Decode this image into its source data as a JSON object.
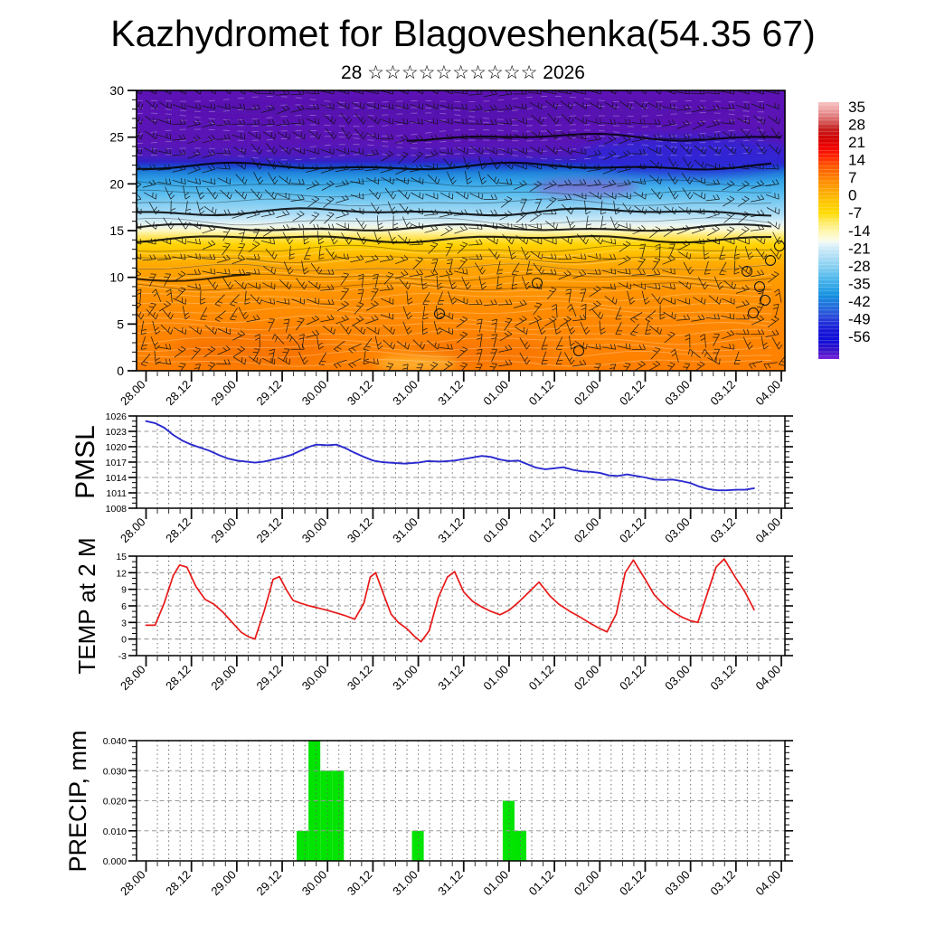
{
  "title": "Kazhydromet for Blagoveshenka(54.35 67)",
  "subtitle": "28 ☆☆☆☆☆☆☆☆☆☆ 2026",
  "panels": {
    "pmsl_label": "PMSL",
    "temp_label": "TEMP at 2 M",
    "precip_label": "PRECIP, mm"
  },
  "time_axis": {
    "tick_labels": [
      "28.00",
      "28.12",
      "29.00",
      "29.12",
      "30.00",
      "30.12",
      "31.00",
      "31.12",
      "01.00",
      "01.12",
      "02.00",
      "02.12",
      "03.00",
      "03.12",
      "04.00"
    ],
    "minor_step_hours": 3,
    "major_step_hours": 12,
    "span_days": 7
  },
  "chart_data": [
    {
      "id": "cross_section",
      "type": "heatmap",
      "description": "Upper-air temperature cross-section with wind barbs",
      "ylim": [
        0,
        30
      ],
      "ytick_labels": [
        "0",
        "5",
        "10",
        "15",
        "20",
        "25",
        "30"
      ],
      "color_bands_by_height": [
        {
          "h": 30,
          "color": "#5c12b4"
        },
        {
          "h": 24.5,
          "color": "#5a14b6"
        },
        {
          "h": 23,
          "color": "#4c19bc"
        },
        {
          "h": 22.4,
          "color": "#3222c6"
        },
        {
          "h": 21.9,
          "color": "#1947d0"
        },
        {
          "h": 21.2,
          "color": "#1f83da"
        },
        {
          "h": 20.2,
          "color": "#36a6e8"
        },
        {
          "h": 19,
          "color": "#58bcee"
        },
        {
          "h": 18,
          "color": "#7fccf2"
        },
        {
          "h": 17,
          "color": "#a2d8f4"
        },
        {
          "h": 16.2,
          "color": "#c8e9f8"
        },
        {
          "h": 15.6,
          "color": "#e9f4f0"
        },
        {
          "h": 15.05,
          "color": "#fbf8cc"
        },
        {
          "h": 14.4,
          "color": "#ffe76a"
        },
        {
          "h": 13.5,
          "color": "#ffd300"
        },
        {
          "h": 12.4,
          "color": "#ffbb00"
        },
        {
          "h": 11,
          "color": "#ffa500"
        },
        {
          "h": 8.5,
          "color": "#ff9300"
        },
        {
          "h": 5,
          "color": "#ff8700"
        },
        {
          "h": 0,
          "color": "#ff7f00"
        }
      ],
      "colorbar": {
        "tick_labels": [
          "35",
          "28",
          "21",
          "14",
          "7",
          "0",
          "-7",
          "-14",
          "-21",
          "-28",
          "-35",
          "-42",
          "-49",
          "-56"
        ],
        "gradient_by_value": [
          {
            "v": 38,
            "color": "#f7c0c0"
          },
          {
            "v": 35,
            "color": "#eda0a0"
          },
          {
            "v": 31,
            "color": "#d86060"
          },
          {
            "v": 28,
            "color": "#c62020"
          },
          {
            "v": 24,
            "color": "#d40000"
          },
          {
            "v": 21,
            "color": "#f00000"
          },
          {
            "v": 17,
            "color": "#ff2a00"
          },
          {
            "v": 14,
            "color": "#ff5500"
          },
          {
            "v": 10,
            "color": "#ff7b00"
          },
          {
            "v": 7,
            "color": "#ff9400"
          },
          {
            "v": 3,
            "color": "#ffb200"
          },
          {
            "v": 0,
            "color": "#ffc800"
          },
          {
            "v": -4,
            "color": "#ffdb00"
          },
          {
            "v": -7,
            "color": "#ffe95e"
          },
          {
            "v": -11,
            "color": "#fef7b0"
          },
          {
            "v": -14,
            "color": "#fbfce3"
          },
          {
            "v": -15,
            "color": "#eff8f6"
          },
          {
            "v": -17,
            "color": "#d3ecf9"
          },
          {
            "v": -21,
            "color": "#a8dcf5"
          },
          {
            "v": -25,
            "color": "#7ccbf0"
          },
          {
            "v": -28,
            "color": "#55baec"
          },
          {
            "v": -32,
            "color": "#2fa5e6"
          },
          {
            "v": -35,
            "color": "#1490e0"
          },
          {
            "v": -38,
            "color": "#1f77dd"
          },
          {
            "v": -42,
            "color": "#2a55da"
          },
          {
            "v": -45,
            "color": "#2333d8"
          },
          {
            "v": -49,
            "color": "#1512d8"
          },
          {
            "v": -52,
            "color": "#0e0ed8"
          },
          {
            "v": -56,
            "color": "#3c14c8"
          },
          {
            "v": -59,
            "color": "#7a22dc"
          }
        ]
      }
    },
    {
      "id": "pmsl",
      "type": "line",
      "label": "PMSL",
      "line_color": "#2a2ad0",
      "ylim": [
        1008,
        1026
      ],
      "ytick_labels": [
        "1008",
        "1011",
        "1014",
        "1017",
        "1020",
        "1023",
        "1026"
      ],
      "points": [
        [
          0,
          1025.0
        ],
        [
          0.1,
          1024.6
        ],
        [
          0.2,
          1023.7
        ],
        [
          0.3,
          1022.3
        ],
        [
          0.4,
          1021.2
        ],
        [
          0.5,
          1020.4
        ],
        [
          0.6,
          1019.8
        ],
        [
          0.7,
          1019.2
        ],
        [
          0.8,
          1018.4
        ],
        [
          0.9,
          1017.7
        ],
        [
          1.0,
          1017.3
        ],
        [
          1.1,
          1017.1
        ],
        [
          1.2,
          1016.9
        ],
        [
          1.3,
          1017.1
        ],
        [
          1.4,
          1017.5
        ],
        [
          1.5,
          1017.9
        ],
        [
          1.6,
          1018.4
        ],
        [
          1.7,
          1019.2
        ],
        [
          1.8,
          1020.0
        ],
        [
          1.875,
          1020.4
        ],
        [
          2.0,
          1020.3
        ],
        [
          2.1,
          1020.4
        ],
        [
          2.2,
          1019.7
        ],
        [
          2.3,
          1018.8
        ],
        [
          2.4,
          1018.0
        ],
        [
          2.5,
          1017.3
        ],
        [
          2.6,
          1017.0
        ],
        [
          2.75,
          1016.8
        ],
        [
          2.85,
          1016.7
        ],
        [
          3.0,
          1016.9
        ],
        [
          3.1,
          1017.2
        ],
        [
          3.25,
          1017.1
        ],
        [
          3.4,
          1017.3
        ],
        [
          3.5,
          1017.6
        ],
        [
          3.6,
          1017.9
        ],
        [
          3.7,
          1018.2
        ],
        [
          3.8,
          1018.0
        ],
        [
          3.9,
          1017.5
        ],
        [
          4.0,
          1017.2
        ],
        [
          4.1,
          1017.3
        ],
        [
          4.2,
          1016.6
        ],
        [
          4.3,
          1015.9
        ],
        [
          4.4,
          1015.6
        ],
        [
          4.5,
          1015.8
        ],
        [
          4.6,
          1016.0
        ],
        [
          4.7,
          1015.5
        ],
        [
          4.8,
          1015.2
        ],
        [
          4.9,
          1015.1
        ],
        [
          5.0,
          1014.9
        ],
        [
          5.1,
          1014.4
        ],
        [
          5.2,
          1014.3
        ],
        [
          5.3,
          1014.6
        ],
        [
          5.4,
          1014.3
        ],
        [
          5.5,
          1014.0
        ],
        [
          5.6,
          1013.6
        ],
        [
          5.7,
          1013.5
        ],
        [
          5.8,
          1013.6
        ],
        [
          5.9,
          1013.3
        ],
        [
          6.0,
          1012.9
        ],
        [
          6.1,
          1012.2
        ],
        [
          6.2,
          1011.7
        ],
        [
          6.3,
          1011.5
        ],
        [
          6.4,
          1011.5
        ],
        [
          6.5,
          1011.6
        ],
        [
          6.6,
          1011.6
        ],
        [
          6.7,
          1011.9
        ]
      ]
    },
    {
      "id": "temp",
      "type": "line",
      "label": "TEMP at 2 M",
      "line_color": "#e81818",
      "ylim": [
        -3,
        15
      ],
      "ytick_labels": [
        "-3",
        "0",
        "3",
        "6",
        "9",
        "12",
        "15"
      ],
      "points": [
        [
          0,
          2.5
        ],
        [
          0.1,
          2.5
        ],
        [
          0.2,
          6.5
        ],
        [
          0.3,
          11.5
        ],
        [
          0.37,
          13.4
        ],
        [
          0.45,
          13.0
        ],
        [
          0.55,
          9.5
        ],
        [
          0.65,
          7.2
        ],
        [
          0.75,
          6.3
        ],
        [
          0.85,
          4.8
        ],
        [
          0.95,
          3.0
        ],
        [
          1.05,
          1.2
        ],
        [
          1.13,
          0.4
        ],
        [
          1.2,
          0.0
        ],
        [
          1.3,
          5.0
        ],
        [
          1.4,
          10.8
        ],
        [
          1.47,
          11.3
        ],
        [
          1.55,
          8.8
        ],
        [
          1.62,
          7.0
        ],
        [
          1.7,
          6.5
        ],
        [
          1.8,
          6.0
        ],
        [
          1.9,
          5.6
        ],
        [
          2.0,
          5.2
        ],
        [
          2.1,
          4.7
        ],
        [
          2.2,
          4.2
        ],
        [
          2.3,
          3.6
        ],
        [
          2.4,
          6.5
        ],
        [
          2.47,
          11.2
        ],
        [
          2.53,
          12.0
        ],
        [
          2.62,
          8.0
        ],
        [
          2.7,
          4.5
        ],
        [
          2.78,
          3.0
        ],
        [
          2.88,
          1.8
        ],
        [
          2.95,
          0.6
        ],
        [
          3.03,
          -0.5
        ],
        [
          3.12,
          1.5
        ],
        [
          3.22,
          7.5
        ],
        [
          3.32,
          11.2
        ],
        [
          3.4,
          12.2
        ],
        [
          3.5,
          8.5
        ],
        [
          3.6,
          6.8
        ],
        [
          3.7,
          5.8
        ],
        [
          3.8,
          5.0
        ],
        [
          3.9,
          4.4
        ],
        [
          4.0,
          5.2
        ],
        [
          4.1,
          6.6
        ],
        [
          4.2,
          8.2
        ],
        [
          4.33,
          10.3
        ],
        [
          4.45,
          7.8
        ],
        [
          4.55,
          6.3
        ],
        [
          4.67,
          5.0
        ],
        [
          4.78,
          4.0
        ],
        [
          4.9,
          2.8
        ],
        [
          5.0,
          1.9
        ],
        [
          5.08,
          1.3
        ],
        [
          5.18,
          4.5
        ],
        [
          5.28,
          12.0
        ],
        [
          5.37,
          14.3
        ],
        [
          5.5,
          10.8
        ],
        [
          5.6,
          8.0
        ],
        [
          5.7,
          6.3
        ],
        [
          5.8,
          5.0
        ],
        [
          5.9,
          4.0
        ],
        [
          6.0,
          3.3
        ],
        [
          6.08,
          3.0
        ],
        [
          6.18,
          8.0
        ],
        [
          6.28,
          13.0
        ],
        [
          6.37,
          14.5
        ],
        [
          6.5,
          11.0
        ],
        [
          6.6,
          8.5
        ],
        [
          6.7,
          5.3
        ]
      ]
    },
    {
      "id": "precip",
      "type": "bar",
      "label": "PRECIP, mm",
      "bar_color": "#00e400",
      "ylim": [
        0,
        0.04
      ],
      "ytick_labels": [
        "0.000",
        "0.010",
        "0.020",
        "0.030",
        "0.040"
      ],
      "bar_width_days": 0.13,
      "bars": [
        [
          1.66,
          0.01
        ],
        [
          1.79,
          0.04
        ],
        [
          1.92,
          0.03
        ],
        [
          2.05,
          0.03
        ],
        [
          2.93,
          0.01
        ],
        [
          3.93,
          0.02
        ],
        [
          4.06,
          0.01
        ]
      ]
    }
  ]
}
